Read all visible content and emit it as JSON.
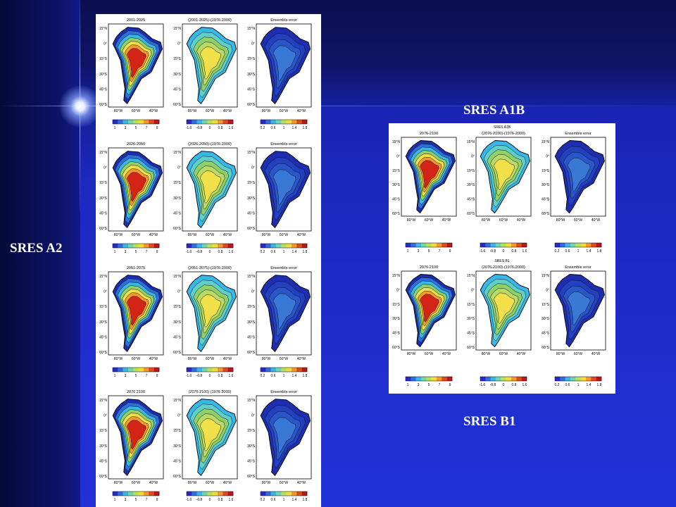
{
  "labels": {
    "sres_a2": "SRES A2",
    "sres_a1b": "SRES A1B",
    "sres_b1": "SRES B1"
  },
  "left_figure": {
    "rows": [
      {
        "titles": [
          "2001-2025",
          "(2001-2025)-(1976-2000)",
          "Ensemble error"
        ]
      },
      {
        "titles": [
          "2026-2050",
          "(2026-2050)-(1976-2000)",
          "Ensemble error"
        ]
      },
      {
        "titles": [
          "2051-2075",
          "(2051-2075)-(1976-2000)",
          "Ensemble error"
        ]
      },
      {
        "titles": [
          "2076 2100",
          "(2076 2100) (1976 2000)",
          "Ensemble error"
        ]
      }
    ]
  },
  "right_figure": {
    "rows": [
      {
        "header": "SRES A1B",
        "titles": [
          "2076-2100",
          "(2076-2100)-(1976-2000)",
          "Ensemble error"
        ]
      },
      {
        "header": "SRES B1",
        "titles": [
          "2076-2100",
          "(2076-2100)-(1976-2000)",
          "Ensemble error"
        ]
      }
    ]
  },
  "colorbars": {
    "absolute": [
      "1",
      "3",
      "5",
      "7",
      "9"
    ],
    "difference": [
      "-1.6",
      "-0.8",
      "0",
      "0.8",
      "1.6"
    ],
    "error": [
      "0.2",
      "0.6",
      "1",
      "1.4",
      "1.8"
    ]
  },
  "axes": {
    "lat_ticks": [
      "15°N",
      "0°",
      "15°S",
      "30°S",
      "45°S",
      "60°S"
    ],
    "lon_ticks": [
      "80°W",
      "60°W",
      "40°W"
    ]
  },
  "colors": {
    "background": "#2131d6",
    "map_blue": "#1d2fb0",
    "map_cyan": "#38b8e8",
    "map_green": "#8fd06a",
    "map_yellow": "#f2e04a",
    "map_red": "#d42418"
  }
}
